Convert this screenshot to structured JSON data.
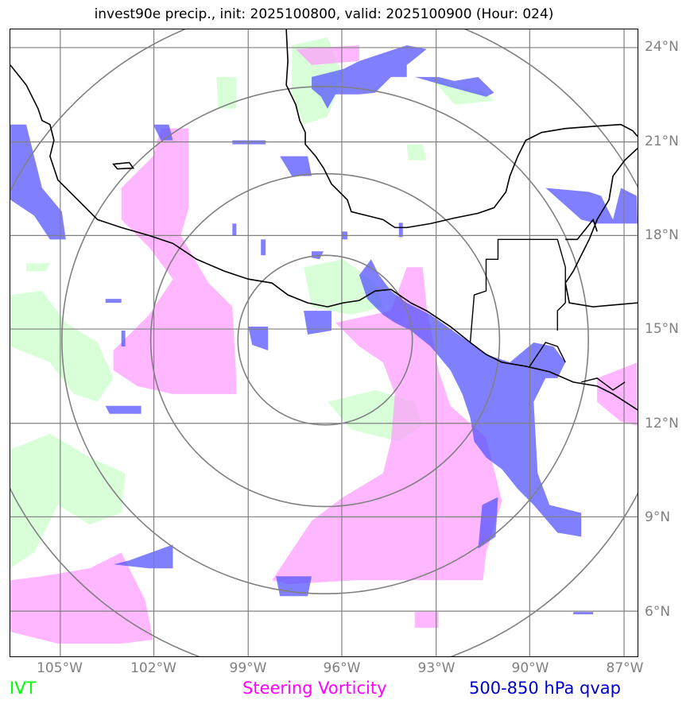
{
  "title": "invest90e precip., init: 2025100800, valid: 2025100900 (Hour: 024)",
  "lon_labels": [
    "105°W",
    "102°W",
    "99°W",
    "96°W",
    "93°W",
    "90°W",
    "87°W"
  ],
  "lat_labels": [
    "24°N",
    "21°N",
    "18°N",
    "15°N",
    "12°N",
    "9°N",
    "6°N"
  ],
  "legend": [
    {
      "label": "IVT",
      "color": "#00ff00"
    },
    {
      "label": "Steering Vorticity",
      "color": "#ff00ff"
    },
    {
      "label": "500-850 hPa qvap",
      "color": "#0000cc"
    }
  ],
  "colors": {
    "ivt_fill": "#ccffcc",
    "vorticity_fill": "#ff99ff",
    "qvap_fill": "#5555ff",
    "grid": "#808080",
    "coast": "#000000",
    "range_rings": "#808080"
  }
}
